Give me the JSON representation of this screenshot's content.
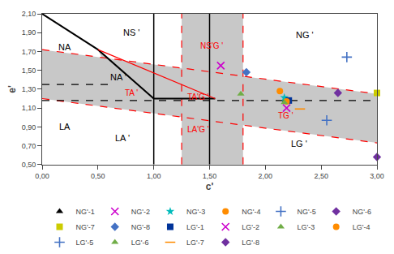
{
  "chart_data": {
    "type": "scatter",
    "xlabel": "c'",
    "ylabel": "e'",
    "xlim": [
      0.0,
      3.0
    ],
    "ylim": [
      0.5,
      2.1
    ],
    "xticks": [
      {
        "value": 0.0,
        "label": "0,00"
      },
      {
        "value": 0.5,
        "label": "0,50"
      },
      {
        "value": 1.0,
        "label": "1,00"
      },
      {
        "value": 1.5,
        "label": "1,50"
      },
      {
        "value": 2.0,
        "label": "2,00"
      },
      {
        "value": 2.5,
        "label": "2,50"
      },
      {
        "value": 3.0,
        "label": "3,00"
      }
    ],
    "yticks": [
      {
        "value": 0.5,
        "label": "0,50"
      },
      {
        "value": 0.7,
        "label": "0,70"
      },
      {
        "value": 0.9,
        "label": "0,90"
      },
      {
        "value": 1.1,
        "label": "1,10"
      },
      {
        "value": 1.3,
        "label": "1,30"
      },
      {
        "value": 1.5,
        "label": "1,50"
      },
      {
        "value": 1.7,
        "label": "1,70"
      },
      {
        "value": 1.9,
        "label": "1,90"
      },
      {
        "value": 2.1,
        "label": "2,10"
      }
    ],
    "grid": false,
    "legend": "bottom",
    "series": [
      {
        "type": "band",
        "color": "#C8C8C8",
        "x": [
          0.0,
          3.0
        ],
        "upper": [
          1.72,
          1.25
        ],
        "values": [
          1.2,
          0.73
        ]
      },
      {
        "type": "vspan",
        "color": "#C8C8C8",
        "x": [
          1.25,
          1.8
        ]
      },
      {
        "type": "polygon",
        "color": "#C8C8C8",
        "x": [
          0.5,
          1.0,
          1.0,
          0.65,
          0.5
        ],
        "values": [
          1.72,
          1.2,
          1.35,
          1.35,
          1.72
        ]
      },
      {
        "type": "line",
        "color": "red",
        "line_style": "dashed",
        "x": [
          0.0,
          3.0
        ],
        "values": [
          1.72,
          1.25
        ]
      },
      {
        "type": "line",
        "color": "red",
        "line_style": "dashed",
        "x": [
          0.0,
          3.0
        ],
        "values": [
          1.2,
          0.73
        ]
      },
      {
        "type": "vline",
        "color": "red",
        "line_style": "dashed",
        "x": 1.25
      },
      {
        "type": "vline",
        "color": "red",
        "line_style": "dashed",
        "x": 1.8
      },
      {
        "type": "vline",
        "color": "black",
        "line_style": "solid",
        "x": 1.0
      },
      {
        "type": "vline",
        "color": "black",
        "line_style": "solid",
        "x": 1.5
      },
      {
        "type": "line",
        "color": "black",
        "line_style": "solid",
        "x": [
          0.0,
          0.5,
          1.0
        ],
        "values": [
          2.1,
          1.72,
          1.2
        ]
      },
      {
        "type": "line",
        "color": "black",
        "line_style": "solid",
        "x": [
          1.0,
          1.55
        ],
        "values": [
          1.2,
          1.2
        ]
      },
      {
        "type": "line",
        "color": "red",
        "line_style": "solid",
        "x": [
          0.5,
          1.55
        ],
        "values": [
          1.72,
          1.2
        ]
      },
      {
        "type": "line",
        "color": "black",
        "line_style": "dashed",
        "x": [
          0.0,
          0.65
        ],
        "values": [
          1.35,
          1.35
        ]
      },
      {
        "type": "line",
        "color": "black",
        "line_style": "dashed",
        "x": [
          0.0,
          3.0
        ],
        "values": [
          1.18,
          1.18
        ]
      },
      {
        "type": "scatter",
        "name": "NG'-1",
        "color": "#000000",
        "marker": "triangle-up",
        "x": [
          2.18
        ],
        "values": [
          1.19
        ]
      },
      {
        "type": "scatter",
        "name": "NG'-2",
        "color": "#CC00CC",
        "marker": "x-thin-open",
        "x": [
          1.6
        ],
        "values": [
          1.55
        ]
      },
      {
        "type": "scatter",
        "name": "NG'-3",
        "color": "#00BBBB",
        "marker": "star",
        "x": [
          2.17
        ],
        "values": [
          1.21
        ]
      },
      {
        "type": "scatter",
        "name": "NG'-4",
        "color": "#FF8C00",
        "marker": "circle",
        "x": [
          2.13
        ],
        "values": [
          1.28
        ]
      },
      {
        "type": "scatter",
        "name": "NG'-5",
        "color": "#4472C4",
        "marker": "cross-thin-open",
        "x": [
          2.73
        ],
        "values": [
          1.64
        ]
      },
      {
        "type": "scatter",
        "name": "NG'-6",
        "color": "#7030A0",
        "marker": "diamond",
        "x": [
          2.65
        ],
        "values": [
          1.26
        ]
      },
      {
        "type": "scatter",
        "name": "NG'-7",
        "color": "#CCCC00",
        "marker": "square",
        "x": [
          3.0
        ],
        "values": [
          1.26
        ]
      },
      {
        "type": "scatter",
        "name": "NG'-8",
        "color": "#4472C4",
        "marker": "diamond",
        "x": [
          1.83
        ],
        "values": [
          1.48
        ]
      },
      {
        "type": "scatter",
        "name": "LG'-1",
        "color": "#003399",
        "marker": "square",
        "x": [
          2.21
        ],
        "values": [
          1.18
        ]
      },
      {
        "type": "scatter",
        "name": "LG'-2",
        "color": "#CC00CC",
        "marker": "x-thin-open",
        "x": [
          2.19
        ],
        "values": [
          1.1
        ]
      },
      {
        "type": "scatter",
        "name": "LG'-3",
        "color": "#70AD47",
        "marker": "triangle-up",
        "x": [
          1.78
        ],
        "values": [
          1.25
        ]
      },
      {
        "type": "scatter",
        "name": "LG'-4",
        "color": "#FF8C00",
        "marker": "circle",
        "x": [
          2.19
        ],
        "values": [
          1.17
        ]
      },
      {
        "type": "scatter",
        "name": "LG'-5",
        "color": "#4472C4",
        "marker": "cross-thin-open",
        "x": [
          2.55
        ],
        "values": [
          0.97
        ]
      },
      {
        "type": "scatter",
        "name": "LG'-6",
        "color": "#70AD47",
        "marker": "triangle-up",
        "x": [
          2.17
        ],
        "values": [
          1.16
        ]
      },
      {
        "type": "scatter",
        "name": "LG'-7",
        "color": "#FF8C00",
        "marker": "line-ew-open",
        "x": [
          2.31
        ],
        "values": [
          1.09
        ]
      },
      {
        "type": "scatter",
        "name": "LG'-8",
        "color": "#7030A0",
        "marker": "diamond",
        "x": [
          3.0
        ],
        "values": [
          0.58
        ]
      }
    ],
    "annotations": [
      {
        "text": "NA",
        "x": 0.2,
        "y": 1.75,
        "color": "black"
      },
      {
        "text": "NS '",
        "x": 0.8,
        "y": 1.9,
        "color": "black"
      },
      {
        "text": "NG '",
        "x": 2.35,
        "y": 1.88,
        "color": "black"
      },
      {
        "text": "LA",
        "x": 0.2,
        "y": 0.9,
        "color": "black"
      },
      {
        "text": "LA '",
        "x": 0.72,
        "y": 0.78,
        "color": "black"
      },
      {
        "text": "LG '",
        "x": 2.3,
        "y": 0.72,
        "color": "black"
      },
      {
        "text": "NA '",
        "x": 0.68,
        "y": 1.43,
        "color": "black"
      },
      {
        "text": "TA '",
        "x": 0.8,
        "y": 1.26,
        "color": "red"
      },
      {
        "text": "NS'G '",
        "x": 1.52,
        "y": 1.76,
        "color": "red"
      },
      {
        "text": "TA'G '",
        "x": 1.4,
        "y": 1.22,
        "color": "red"
      },
      {
        "text": "LA'G '",
        "x": 1.4,
        "y": 0.87,
        "color": "red"
      },
      {
        "text": "TG '",
        "x": 2.18,
        "y": 1.02,
        "color": "red"
      }
    ]
  }
}
